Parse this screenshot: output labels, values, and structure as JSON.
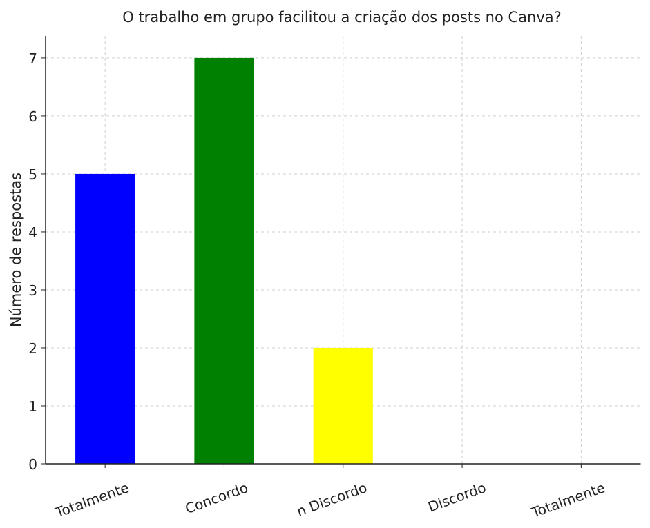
{
  "chart_data": {
    "type": "bar",
    "title": "O trabalho em grupo facilitou a criação dos posts no Canva?",
    "ylabel": "Número de respostas",
    "categories": [
      "Totalmente",
      "Concordo",
      "n Discordo",
      "Discordo",
      "Totalmente"
    ],
    "values": [
      5,
      7,
      2,
      0,
      0
    ],
    "colors": [
      "#0000ff",
      "#008000",
      "#ffff00",
      "#ffa500",
      "#ff0000"
    ],
    "ylim": [
      0,
      7.38
    ],
    "yticks": [
      0,
      1,
      2,
      3,
      4,
      5,
      6,
      7
    ],
    "grid": true
  }
}
